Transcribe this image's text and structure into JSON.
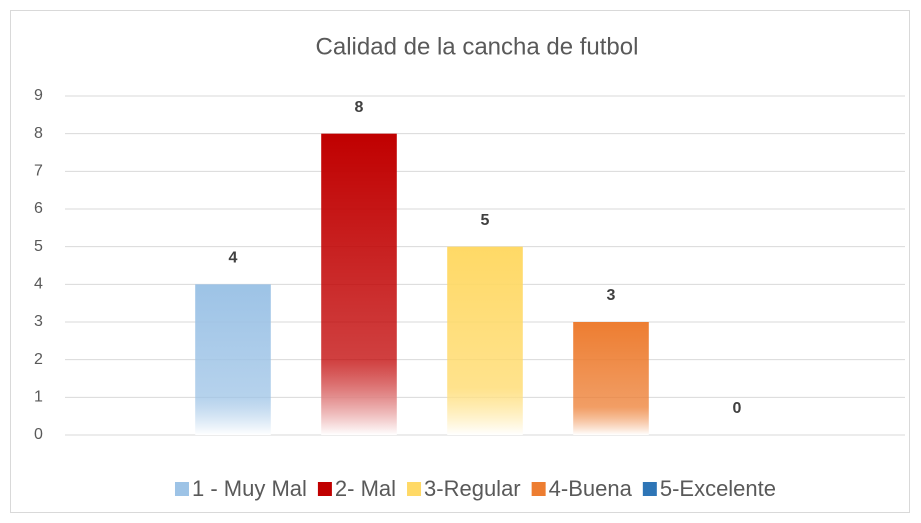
{
  "chart_data": {
    "type": "bar",
    "title": "Calidad de la cancha de futbol",
    "categories": [
      null
    ],
    "series": [
      {
        "name": "1 - Muy Mal",
        "color": "#9dc3e6",
        "values": [
          4
        ]
      },
      {
        "name": "2- Mal",
        "color": "#c00000",
        "values": [
          8
        ]
      },
      {
        "name": "3-Regular",
        "color": "#ffd966",
        "values": [
          5
        ]
      },
      {
        "name": "4-Buena",
        "color": "#ed7d31",
        "values": [
          3
        ]
      },
      {
        "name": "5-Excelente",
        "color": "#2e75b6",
        "values": [
          0
        ]
      }
    ],
    "ylim": [
      0,
      9
    ],
    "yticks": [
      0,
      1,
      2,
      3,
      4,
      5,
      6,
      7,
      8,
      9
    ],
    "grid": true,
    "legend": "bottom"
  }
}
